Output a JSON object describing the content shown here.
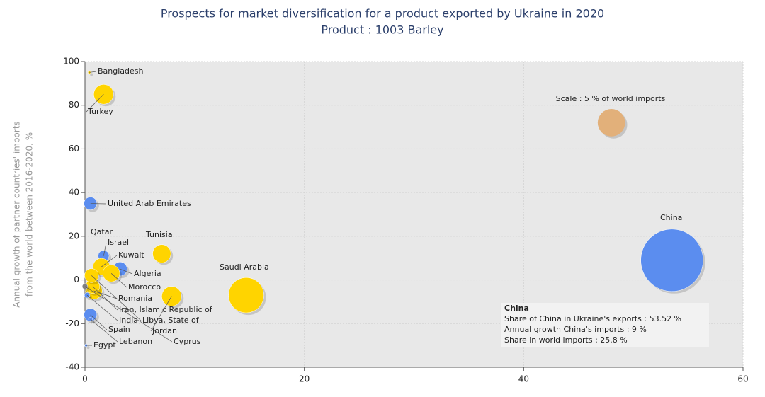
{
  "chart_data": {
    "type": "bubble",
    "title": "Prospects for market diversification for a product exported by Ukraine in 2020",
    "subtitle": "Product : 1003 Barley",
    "y_label": [
      "Annual growth of partner countries' imports",
      "from the world between 2016-2020, %"
    ],
    "xlim": [
      0,
      60
    ],
    "xticks": [
      0,
      20,
      40,
      60
    ],
    "ylim": [
      -40,
      100
    ],
    "yticks": [
      -40,
      -20,
      0,
      20,
      40,
      60,
      80,
      100
    ],
    "grid": true,
    "points": [
      {
        "name": "Bangladesh",
        "x": 0.4,
        "y": 95,
        "size": 0.05,
        "color": "#f5c800"
      },
      {
        "name": "Turkey",
        "x": 1.7,
        "y": 85,
        "size": 2.6,
        "color": "#ffd400"
      },
      {
        "name": "United Arab Emirates",
        "x": 0.5,
        "y": 35,
        "size": 1.1,
        "color": "#5b8def"
      },
      {
        "name": "Qatar",
        "x": 1.3,
        "y": 8,
        "size": 0.3,
        "color": "#5b8def"
      },
      {
        "name": "Israel",
        "x": 1.7,
        "y": 11,
        "size": 0.8,
        "color": "#5b8def"
      },
      {
        "name": "Kuwait",
        "x": 1.5,
        "y": 6,
        "size": 1.9,
        "color": "#ffd400"
      },
      {
        "name": "Tunisia",
        "x": 7.0,
        "y": 12,
        "size": 2.2,
        "color": "#ffd400"
      },
      {
        "name": "Algeria",
        "x": 3.2,
        "y": 5,
        "size": 1.3,
        "color": "#5b8def"
      },
      {
        "name": "Morocco",
        "x": 2.4,
        "y": 3,
        "size": 1.9,
        "color": "#ffd400"
      },
      {
        "name": "Saudi Arabia",
        "x": 14.7,
        "y": -7,
        "size": 8.3,
        "color": "#ffd400"
      },
      {
        "name": "Romania",
        "x": 0.8,
        "y": -5,
        "size": 1.9,
        "color": "#ffd400"
      },
      {
        "name": "Iran, Islamic Republic of",
        "x": 0.7,
        "y": -3,
        "size": 1.3,
        "color": "#ffd400"
      },
      {
        "name": "India",
        "x": 0.2,
        "y": -7,
        "size": 0.2,
        "color": "#5b8def"
      },
      {
        "name": "Libya, State of",
        "x": 0.6,
        "y": 2,
        "size": 1.3,
        "color": "#ffd400"
      },
      {
        "name": "Jordan",
        "x": 7.9,
        "y": -7.5,
        "size": 2.6,
        "color": "#ffd400"
      },
      {
        "name": "Cyprus",
        "x": 0.0,
        "y": -3,
        "size": 0.2,
        "color": "#808080"
      },
      {
        "name": "Spain",
        "x": 0.5,
        "y": -16,
        "size": 1.1,
        "color": "#5b8def"
      },
      {
        "name": "Lebanon",
        "x": 0.5,
        "y": -18,
        "size": 0.1,
        "color": "#5b8def"
      },
      {
        "name": "Egypt",
        "x": 0.1,
        "y": -30,
        "size": 0.05,
        "color": "#5b8def"
      },
      {
        "name": "China",
        "x": 53.52,
        "y": 9,
        "size": 25.8,
        "color": "#5b8def"
      }
    ],
    "scale_bubble": {
      "label": "Scale : 5 % of world imports",
      "x": 48,
      "y": 72,
      "size": 5,
      "color": "#e2b07a"
    },
    "tooltip": {
      "title": "China",
      "lines": [
        "Share of China in Ukraine's exports : 53.52 %",
        "Annual growth China's imports : 9 %",
        "Share in world imports : 25.8 %"
      ]
    }
  }
}
